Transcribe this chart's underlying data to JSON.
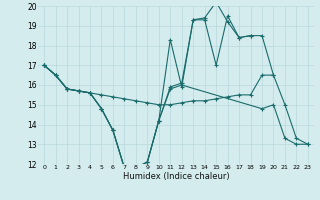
{
  "xlabel": "Humidex (Indice chaleur)",
  "bg_color": "#d4ecee",
  "grid_color": "#b8d8dc",
  "line_color": "#1a6b6b",
  "xlim": [
    -0.5,
    23.5
  ],
  "ylim": [
    12,
    20
  ],
  "xticks": [
    0,
    1,
    2,
    3,
    4,
    5,
    6,
    7,
    8,
    9,
    10,
    11,
    12,
    13,
    14,
    15,
    16,
    17,
    18,
    19,
    20,
    21,
    22,
    23
  ],
  "yticks": [
    12,
    13,
    14,
    15,
    16,
    17,
    18,
    19,
    20
  ],
  "series": [
    {
      "x": [
        0,
        1,
        2,
        3,
        4,
        5,
        6,
        7,
        8,
        9,
        10,
        11,
        12,
        13,
        14,
        15,
        16,
        17,
        18,
        19,
        20
      ],
      "y": [
        17.0,
        16.5,
        15.8,
        15.7,
        15.6,
        15.5,
        15.4,
        15.3,
        15.2,
        15.1,
        15.0,
        15.0,
        15.1,
        15.2,
        15.2,
        15.3,
        15.4,
        15.5,
        15.5,
        16.5,
        16.5
      ]
    },
    {
      "x": [
        0,
        1,
        2,
        3,
        4,
        5,
        6,
        7,
        8,
        9,
        10,
        11,
        12,
        13,
        14,
        15,
        16,
        17,
        18,
        19,
        20,
        21,
        22,
        23
      ],
      "y": [
        17.0,
        16.5,
        15.8,
        15.7,
        15.6,
        14.8,
        13.7,
        11.8,
        11.8,
        12.1,
        14.2,
        18.3,
        15.9,
        19.3,
        19.3,
        17.0,
        19.5,
        18.4,
        18.5,
        18.5,
        16.5,
        15.0,
        13.3,
        13.0
      ]
    },
    {
      "x": [
        0,
        1,
        2,
        3,
        4,
        5,
        6,
        7,
        8,
        9,
        10,
        11,
        12,
        13,
        14,
        15,
        16,
        17,
        18
      ],
      "y": [
        17.0,
        16.5,
        15.8,
        15.7,
        15.6,
        14.8,
        13.7,
        11.8,
        11.8,
        12.1,
        14.2,
        15.9,
        16.1,
        19.3,
        19.4,
        20.2,
        19.2,
        18.4,
        18.5
      ]
    },
    {
      "x": [
        0,
        1,
        2,
        3,
        4,
        5,
        6,
        7,
        8,
        9,
        10,
        11,
        12,
        19,
        20,
        21,
        22,
        23
      ],
      "y": [
        17.0,
        16.5,
        15.8,
        15.7,
        15.6,
        14.8,
        13.7,
        11.8,
        11.8,
        12.1,
        14.2,
        15.8,
        16.0,
        14.8,
        15.0,
        13.3,
        13.0,
        13.0
      ]
    }
  ]
}
